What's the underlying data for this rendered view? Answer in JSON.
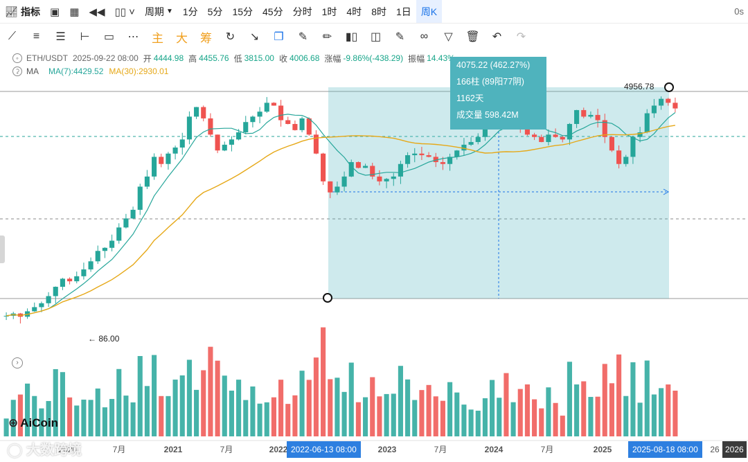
{
  "toolbar": {
    "indicator_label": "指标",
    "interval_dropdown": "周期",
    "intervals": [
      "1分",
      "5分",
      "15分",
      "45分",
      "分时",
      "1时",
      "4时",
      "8时",
      "1日",
      "周K"
    ],
    "active_interval": "周K",
    "right_text": "0s"
  },
  "drawbar": {
    "main_label": "主",
    "big_label": "大",
    "chip_label": "筹"
  },
  "info": {
    "symbol": "ETH/USDT",
    "datetime": "2025-09-22 08:00",
    "open_label": "开",
    "open": "4444.98",
    "high_label": "高",
    "high": "4455.76",
    "low_label": "低",
    "low": "3815.00",
    "close_label": "收",
    "close": "4006.68",
    "change_label": "涨幅",
    "change": "-9.86%(-438.29)",
    "amp_label": "振幅",
    "amp": "14.43%"
  },
  "ma": {
    "label": "MA",
    "ma7": "MA(7):4429.52",
    "ma30": "MA(30):2930.01"
  },
  "measure": {
    "price_change": "4075.22 (462.27%)",
    "bars": "166柱 (89阳77阴)",
    "days": "1162天",
    "volume": "成交量 598.42M"
  },
  "labels": {
    "high_mark": "4956.78",
    "low_mark": "86.00"
  },
  "xaxis": {
    "ticks": [
      "2020",
      "7月",
      "2021",
      "7月",
      "2022",
      "2023",
      "7月",
      "2024",
      "7月",
      "2025",
      "2026"
    ],
    "sel_start": "2022-06-13 08:00",
    "sel_end": "2025-08-18 08:00",
    "partial": "26"
  },
  "branding": {
    "logo": "AiCoin",
    "watermark": "大数跨境"
  },
  "colors": {
    "up": "#26a69a",
    "down": "#ef5350",
    "ma7": "#26a69a",
    "ma30": "#e6a817",
    "measure": "#4fb3bd",
    "accent": "#1a73e8"
  },
  "chart_data": {
    "type": "candlestick",
    "symbol": "ETH/USDT",
    "interval": "周K",
    "approx_weekly_close": [
      130,
      135,
      128,
      140,
      150,
      160,
      180,
      210,
      240,
      230,
      250,
      280,
      320,
      380,
      400,
      450,
      560,
      650,
      750,
      1100,
      1300,
      1800,
      1600,
      1900,
      2100,
      2400,
      3500,
      4100,
      3400,
      2600,
      2000,
      2200,
      2400,
      2700,
      3200,
      3500,
      3800,
      4400,
      4200,
      3300,
      3100,
      2800,
      3400,
      2600,
      1900,
      1200,
      1000,
      1100,
      1300,
      1650,
      1500,
      1550,
      1300,
      1200,
      1250,
      1300,
      1600,
      1850,
      1900,
      1850,
      1800,
      1650,
      1600,
      1800,
      2000,
      2200,
      2300,
      2500,
      3000,
      3500,
      3900,
      3100,
      3300,
      3000,
      2600,
      2500,
      2300,
      2600,
      2500,
      2400,
      3100,
      3900,
      3500,
      3600,
      3300,
      2500,
      2000,
      1600,
      1800,
      2500,
      2700,
      3700,
      4200,
      4700,
      4400,
      4006.68
    ],
    "marks": {
      "high": 4956.78,
      "low": 86.0
    }
  }
}
